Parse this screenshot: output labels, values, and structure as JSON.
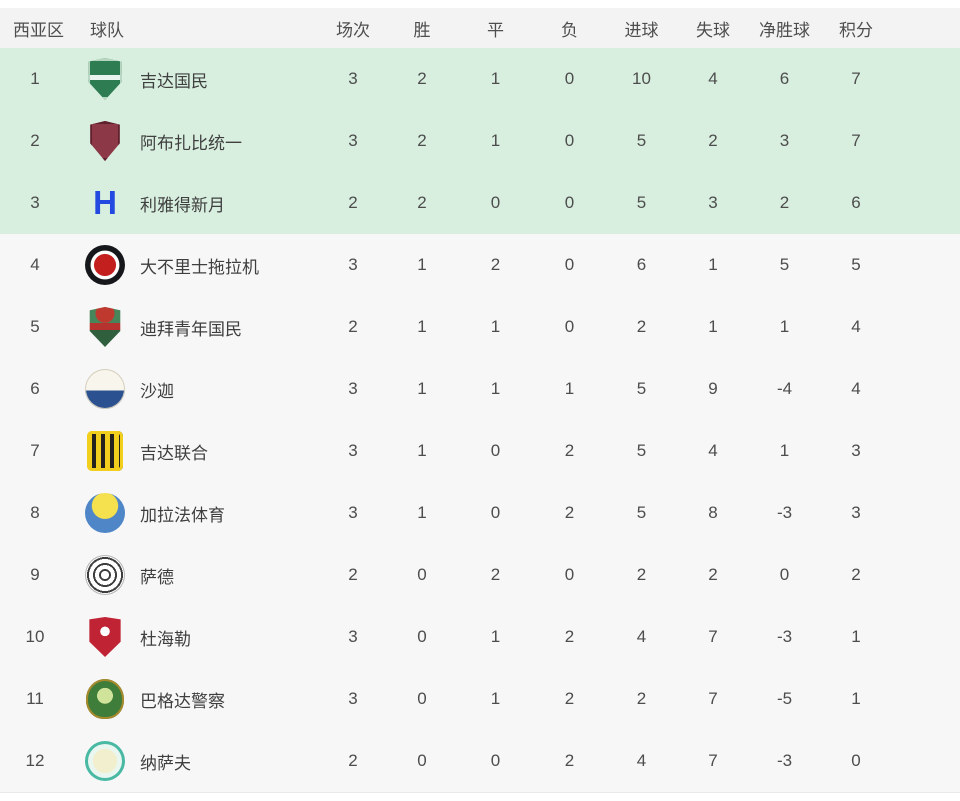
{
  "colors": {
    "header_bg": "#f3f3f3",
    "row_bg": "#f7f7f8",
    "qualify_row_bg": "#d8efdf",
    "text": "#4a4a4a",
    "al_hilal_blue": "#2449e0"
  },
  "table": {
    "columns": [
      "西亚区",
      "球队",
      "场次",
      "胜",
      "平",
      "负",
      "进球",
      "失球",
      "净胜球",
      "积分"
    ],
    "qualify_rows_count": 3,
    "rows": [
      {
        "rank": "1",
        "name": "吉达国民",
        "played": "3",
        "wins": "2",
        "draws": "1",
        "losses": "0",
        "goals_for": "10",
        "goals_against": "4",
        "goal_diff": "6",
        "points": "7",
        "crest": {
          "icon": "green-shield-crest",
          "text": "",
          "style": "width:36px;height:42px;clip-path:polygon(50% 0%,97% 9%,97% 56%,50% 100%,3% 56%,3% 9%);background:linear-gradient(180deg,#2e7d52 0 40%,#e9f4ee 40% 52%,#2e7d52 52% 100%);box-shadow:inset 0 0 0 3px #b7d6c2"
        }
      },
      {
        "rank": "2",
        "name": "阿布扎比统一",
        "played": "3",
        "wins": "2",
        "draws": "1",
        "losses": "0",
        "goals_for": "5",
        "goals_against": "2",
        "goal_diff": "3",
        "points": "7",
        "crest": {
          "icon": "maroon-shield-crest",
          "text": "",
          "style": "width:32px;height:40px;clip-path:polygon(50% 0%,96% 9%,96% 56%,50% 100%,4% 56%,4% 9%);background:#8c3847;box-shadow:inset 0 0 0 3px #5f212e"
        }
      },
      {
        "rank": "3",
        "name": "利雅得新月",
        "played": "2",
        "wins": "2",
        "draws": "0",
        "losses": "0",
        "goals_for": "5",
        "goals_against": "3",
        "goal_diff": "2",
        "points": "6",
        "crest": {
          "icon": "blue-h-crest",
          "text": "H",
          "style": "color:#2449e0;font-weight:800;font-size:33px;line-height:40px"
        }
      },
      {
        "rank": "4",
        "name": "大不里士拖拉机",
        "played": "3",
        "wins": "1",
        "draws": "2",
        "losses": "0",
        "goals_for": "6",
        "goals_against": "1",
        "goal_diff": "5",
        "points": "5",
        "crest": {
          "icon": "black-red-roundel-crest",
          "text": "",
          "style": "width:40px;height:40px;border-radius:50%;background:radial-gradient(circle,#c41f1f 0 38%,#ffffff 40% 50%,#16171b 52% 100%)"
        }
      },
      {
        "rank": "5",
        "name": "迪拜青年国民",
        "played": "2",
        "wins": "1",
        "draws": "1",
        "losses": "0",
        "goals_for": "2",
        "goals_against": "1",
        "goal_diff": "1",
        "points": "4",
        "crest": {
          "icon": "green-red-shield-crest",
          "text": "",
          "style": "width:34px;height:40px;clip-path:polygon(50% 0%,95% 8%,95% 60%,50% 100%,5% 60%,5% 8%);background:radial-gradient(circle at 50% 16%,#c0392f 0 9px,rgba(0,0,0,0) 10px),linear-gradient(180deg,#47865a 0 40%,#b5322f 40% 58%,#305f3e 58% 100%)"
        }
      },
      {
        "rank": "6",
        "name": "沙迦",
        "played": "3",
        "wins": "1",
        "draws": "1",
        "losses": "1",
        "goals_for": "5",
        "goals_against": "9",
        "goal_diff": "-4",
        "points": "4",
        "crest": {
          "icon": "white-blue-roundel-crest",
          "text": "",
          "style": "width:40px;height:40px;border-radius:50%;background:linear-gradient(180deg,#f8f5ec 0 54%,#2c5191 54% 100%);box-shadow:inset 0 0 0 1px #d5cfbd"
        }
      },
      {
        "rank": "7",
        "name": "吉达联合",
        "played": "3",
        "wins": "1",
        "draws": "0",
        "losses": "2",
        "goals_for": "5",
        "goals_against": "4",
        "goal_diff": "1",
        "points": "3",
        "crest": {
          "icon": "yellow-black-striped-crest",
          "text": "",
          "style": "width:36px;height:40px;border-radius:5px;background:repeating-linear-gradient(90deg,#f2cf1c 0 5px,#23221e 5px 9px);box-shadow:inset 0 0 0 3px #f2cf1c"
        }
      },
      {
        "rank": "8",
        "name": "加拉法体育",
        "played": "3",
        "wins": "1",
        "draws": "0",
        "losses": "2",
        "goals_for": "5",
        "goals_against": "8",
        "goal_diff": "-3",
        "points": "3",
        "crest": {
          "icon": "yellow-blue-roundel-crest",
          "text": "",
          "style": "width:40px;height:40px;border-radius:50%;background:radial-gradient(circle at 50% 32%,#f5e04e 0 38%,#4e86c8 40% 100%)"
        }
      },
      {
        "rank": "9",
        "name": "萨德",
        "played": "2",
        "wins": "0",
        "draws": "2",
        "losses": "0",
        "goals_for": "2",
        "goals_against": "2",
        "goal_diff": "0",
        "points": "2",
        "crest": {
          "icon": "black-white-rings-crest",
          "text": "",
          "style": "width:40px;height:40px;border-radius:50%;background:repeating-radial-gradient(circle,#ffffff 0 4px,#3d3d3d 4px 6px);box-shadow:inset 0 0 0 1px #b5b5b5"
        }
      },
      {
        "rank": "10",
        "name": "杜海勒",
        "played": "3",
        "wins": "0",
        "draws": "1",
        "losses": "2",
        "goals_for": "4",
        "goals_against": "7",
        "goal_diff": "-3",
        "points": "1",
        "crest": {
          "icon": "red-shield-crest",
          "text": "",
          "style": "width:34px;height:40px;clip-path:polygon(50% 0%,96% 6%,96% 62%,50% 100%,4% 62%,4% 6%);background:radial-gradient(circle at 50% 36%,#ffffff 0 15%,#c02333 16% 100%)"
        }
      },
      {
        "rank": "11",
        "name": "巴格达警察",
        "played": "3",
        "wins": "0",
        "draws": "1",
        "losses": "2",
        "goals_for": "2",
        "goals_against": "7",
        "goal_diff": "-5",
        "points": "1",
        "crest": {
          "icon": "green-gold-crest",
          "text": "",
          "style": "width:38px;height:40px;border-radius:50% 50% 46% 46%;background:radial-gradient(circle at 50% 42%,#cfe49a 0 26%,#3f7d3a 27% 100%);box-shadow:inset 0 0 0 2px #a8892c"
        }
      },
      {
        "rank": "12",
        "name": "纳萨夫",
        "played": "2",
        "wins": "0",
        "draws": "0",
        "losses": "2",
        "goals_for": "4",
        "goals_against": "7",
        "goal_diff": "-3",
        "points": "0",
        "crest": {
          "icon": "mint-teal-roundel-crest",
          "text": "",
          "style": "width:40px;height:40px;border-radius:50%;background:radial-gradient(circle,#f2efcf 0 42%,#eaf6f0 44% 100%);box-shadow:inset 0 0 0 3px #4ab9a4"
        }
      }
    ]
  }
}
